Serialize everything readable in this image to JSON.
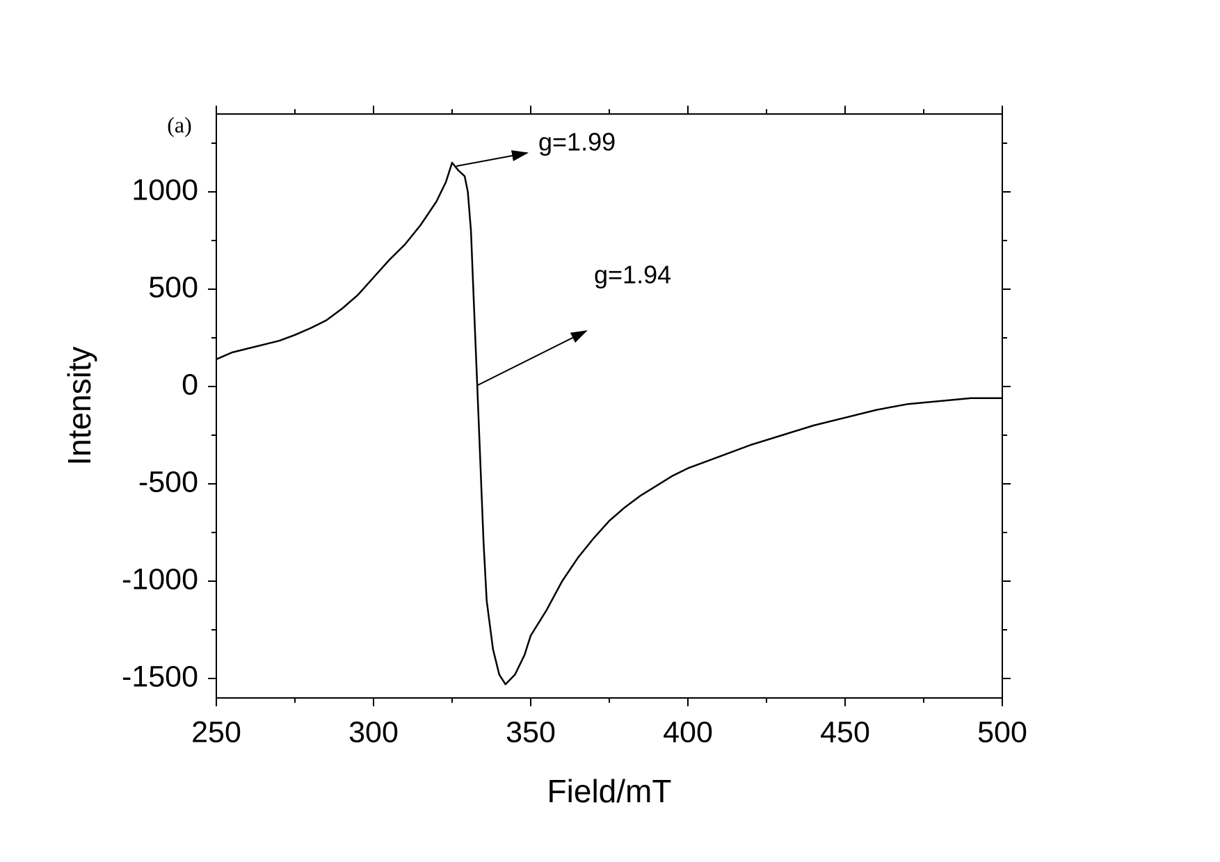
{
  "chart_data": {
    "type": "line",
    "xlabel": "Field/mT",
    "ylabel": "Intensity",
    "annotations": [
      "(a)",
      "g=1.99",
      "g=1.94"
    ],
    "x": [
      250,
      255,
      260,
      265,
      270,
      275,
      280,
      285,
      290,
      295,
      300,
      305,
      310,
      315,
      320,
      323,
      325,
      327,
      329,
      330,
      331,
      332,
      333,
      334,
      335,
      336,
      338,
      340,
      342,
      345,
      348,
      350,
      355,
      360,
      365,
      370,
      375,
      380,
      385,
      390,
      395,
      400,
      410,
      420,
      430,
      440,
      450,
      460,
      470,
      480,
      490,
      500
    ],
    "values": [
      140,
      175,
      195,
      215,
      235,
      265,
      300,
      340,
      400,
      470,
      560,
      650,
      730,
      830,
      950,
      1050,
      1150,
      1110,
      1080,
      1000,
      800,
      400,
      0,
      -400,
      -800,
      -1100,
      -1350,
      -1480,
      -1530,
      -1480,
      -1380,
      -1280,
      -1150,
      -1000,
      -880,
      -780,
      -690,
      -620,
      -560,
      -510,
      -460,
      -420,
      -360,
      -300,
      -250,
      -200,
      -160,
      -120,
      -90,
      -75,
      -60,
      -60
    ],
    "color": "#000000",
    "xlim": [
      250,
      500
    ],
    "xticks": [
      250,
      300,
      350,
      400,
      450,
      500
    ],
    "ylim": [
      -1600,
      1400
    ],
    "yticks": [
      -1500,
      -1000,
      -500,
      0,
      500,
      1000
    ],
    "grid": false
  }
}
